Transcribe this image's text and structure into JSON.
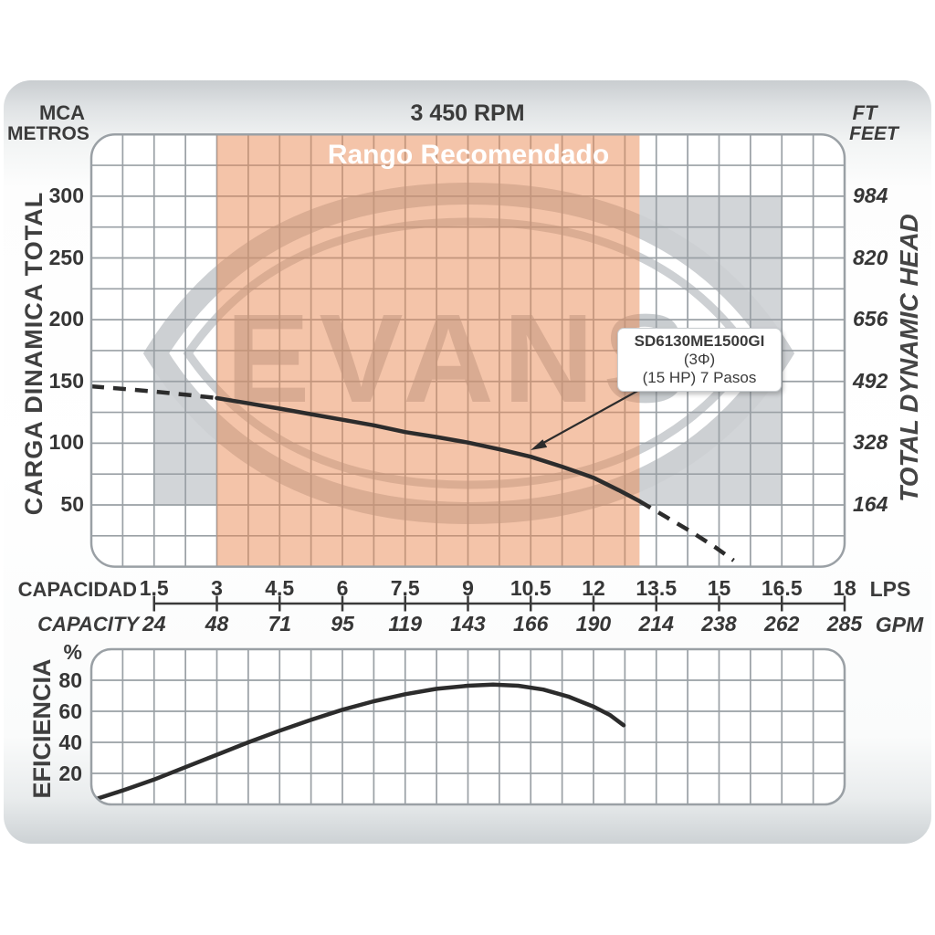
{
  "header": {
    "left_unit_1": "MCA",
    "left_unit_2": "METROS",
    "title": "3 450 RPM",
    "right_unit_1": "FT",
    "right_unit_2": "FEET"
  },
  "watermark": {
    "text": "EVANS"
  },
  "main_chart": {
    "recommended_label": "Rango Recomendado",
    "left_axis_title": "CARGA DINAMICA TOTAL",
    "right_axis_title": "TOTAL DYNAMIC HEAD",
    "pump_label": {
      "model": "SD6130ME1500GI",
      "phase": " (3Φ)",
      "line2": "(15 HP) 7 Pasos"
    }
  },
  "x_axis": {
    "label_top": "CAPACIDAD",
    "label_bottom": "CAPACITY",
    "unit_top": "LPS",
    "unit_bottom": "GPM"
  },
  "eff_chart": {
    "axis_title": "EFICIENCIA",
    "unit": "%"
  },
  "colors": {
    "band_orange": "#e98953",
    "grid_line": "#9aa0a5",
    "curve": "#2c2c2c",
    "watermark_gray": "#d2d5d8",
    "ring_gray": "#cdd0d3",
    "letters_gray": "#c9cdd0",
    "axis_text": "#363636"
  },
  "chart_data": [
    {
      "type": "line",
      "title": "3 450 RPM",
      "xlabel": "CAPACIDAD (LPS) / CAPACITY (GPM)",
      "ylabel": "CARGA DINAMICA TOTAL (MCA) / TOTAL DYNAMIC HEAD (FT)",
      "xlim": [
        0,
        18
      ],
      "ylim": [
        0,
        350
      ],
      "x_ticks_lps": [
        1.5,
        3,
        4.5,
        6,
        7.5,
        9,
        10.5,
        12,
        13.5,
        15,
        16.5,
        18
      ],
      "x_ticks_gpm": [
        24,
        48,
        71,
        95,
        119,
        143,
        166,
        190,
        214,
        238,
        262,
        285
      ],
      "y_ticks_m": [
        300,
        250,
        200,
        150,
        100,
        50
      ],
      "y_ticks_ft": [
        984,
        820,
        656,
        492,
        328,
        164
      ],
      "recommended_range_lps": [
        3,
        13.1
      ],
      "recommended_range_label": "Rango Recomendado",
      "series": [
        {
          "name": "SD6130ME1500GI (3Φ) (15 HP) 7 Pasos",
          "units": "LPS vs m",
          "dashed_low": [
            [
              0,
              146
            ],
            [
              0.75,
              144
            ],
            [
              1.5,
              141.8
            ],
            [
              2.25,
              139.3
            ],
            [
              3,
              136.5
            ]
          ],
          "solid": [
            [
              3,
              136.5
            ],
            [
              3.75,
              132.3
            ],
            [
              4.5,
              128
            ],
            [
              5.25,
              123.5
            ],
            [
              6,
              119
            ],
            [
              6.75,
              114.5
            ],
            [
              7.5,
              109
            ],
            [
              8.25,
              105
            ],
            [
              9,
              100.5
            ],
            [
              9.75,
              95
            ],
            [
              10.5,
              89
            ],
            [
              11.25,
              81
            ],
            [
              12,
              72
            ],
            [
              12.6,
              62
            ],
            [
              13.1,
              53
            ]
          ],
          "dashed_high": [
            [
              13.1,
              53
            ],
            [
              13.7,
              41
            ],
            [
              14.3,
              29
            ],
            [
              14.9,
              16
            ],
            [
              15.35,
              5
            ]
          ]
        }
      ],
      "grid": true,
      "legend_position": "callout-box"
    },
    {
      "type": "line",
      "title": "EFICIENCIA",
      "ylabel": "EFICIENCIA %",
      "xlim": [
        0,
        18
      ],
      "ylim": [
        0,
        100
      ],
      "y_ticks_pct": [
        80,
        60,
        40,
        20
      ],
      "points": [
        [
          0.12,
          3.5
        ],
        [
          0.75,
          9
        ],
        [
          1.5,
          16
        ],
        [
          2.25,
          24
        ],
        [
          3,
          32
        ],
        [
          3.75,
          40
        ],
        [
          4.5,
          47.5
        ],
        [
          5.25,
          54.5
        ],
        [
          6,
          61
        ],
        [
          6.75,
          66.5
        ],
        [
          7.5,
          71
        ],
        [
          8.25,
          74.5
        ],
        [
          9,
          76.5
        ],
        [
          9.6,
          77.2
        ],
        [
          10.2,
          76.5
        ],
        [
          10.8,
          74
        ],
        [
          11.4,
          69.5
        ],
        [
          12,
          63
        ],
        [
          12.4,
          57.5
        ],
        [
          12.72,
          51
        ]
      ],
      "grid": true
    }
  ]
}
